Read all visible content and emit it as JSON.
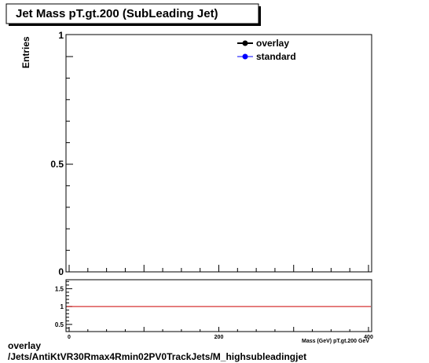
{
  "chart_data": [
    {
      "type": "line",
      "title": "Jet Mass pT.gt.200 (SubLeading Jet)",
      "ylabel": "Entries",
      "xlabel": "",
      "xlim": [
        0,
        400
      ],
      "ylim": [
        0,
        1
      ],
      "y_ticks": [
        "0",
        "0.5",
        "1"
      ],
      "legend_position": "top-right",
      "series": [
        {
          "name": "overlay",
          "color": "#000000",
          "marker": "circle",
          "x": [],
          "y": []
        },
        {
          "name": "standard",
          "color": "#0000ff",
          "marker": "circle",
          "x": [],
          "y": []
        }
      ],
      "grid": false
    },
    {
      "type": "line",
      "title": "",
      "xlabel": "Mass (GeV) pT.gt.200 GeV",
      "ylabel": "",
      "xlim": [
        0,
        400
      ],
      "ylim": [
        0.3,
        1.75
      ],
      "x_ticks": [
        "0",
        "200",
        "400"
      ],
      "y_ticks": [
        "0.5",
        "1",
        "1.5"
      ],
      "reference_line": {
        "y": 1,
        "color": "#cc0000"
      },
      "grid": false
    }
  ],
  "footer": {
    "line1": "overlay",
    "line2": "/Jets/AntiKtVR30Rmax4Rmin02PV0TrackJets/M_highsubleadingjet"
  }
}
